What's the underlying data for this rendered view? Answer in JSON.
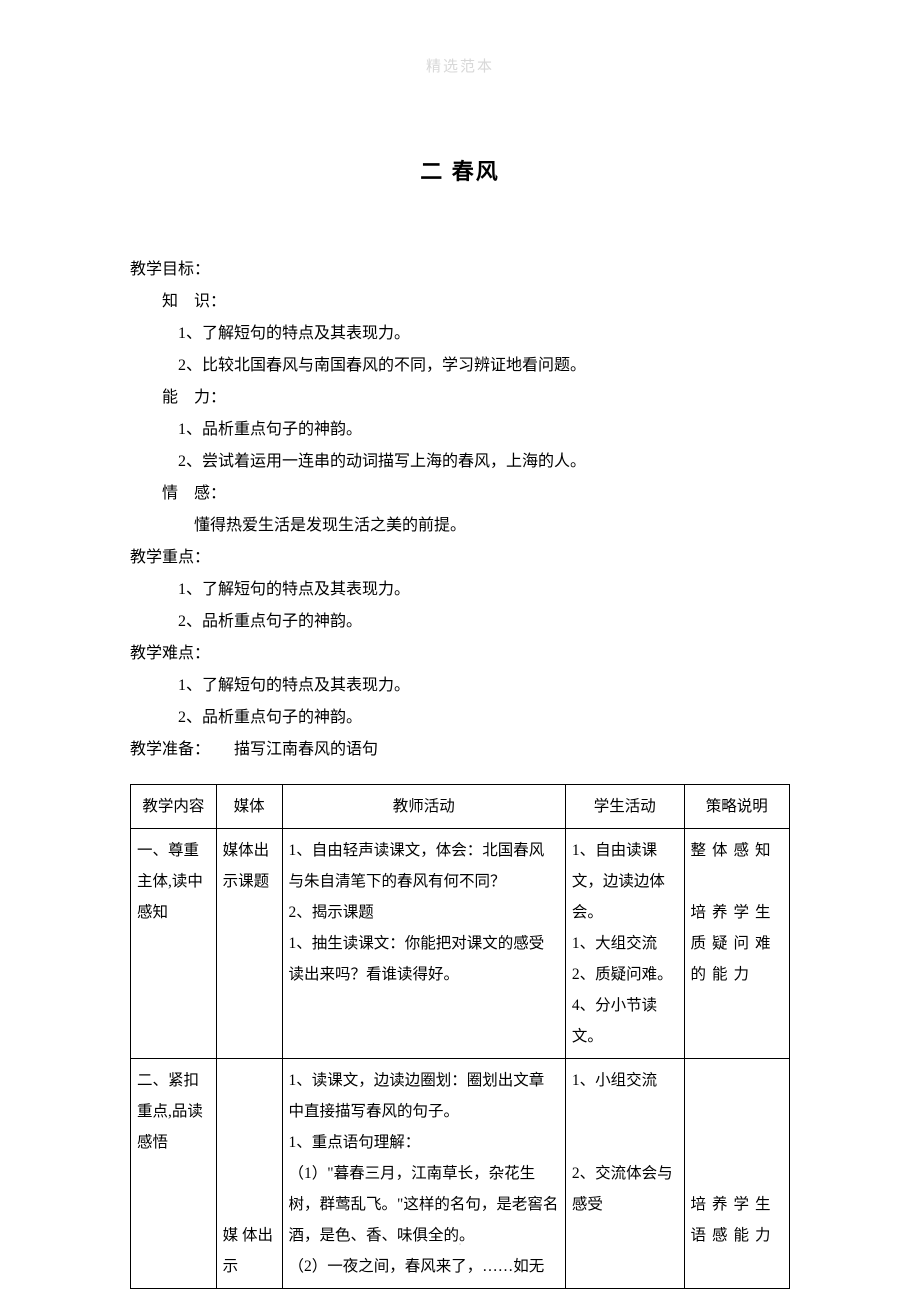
{
  "watermark": "精选范本",
  "title": "二 春风",
  "footer": ".",
  "sections": {
    "goals_label": "教学目标：",
    "knowledge_label": "知　识：",
    "knowledge_items": [
      "1、了解短句的特点及其表现力。",
      "2、比较北国春风与南国春风的不同，学习辨证地看问题。"
    ],
    "ability_label": "能　力：",
    "ability_items": [
      "1、品析重点句子的神韵。",
      "2、尝试着运用一连串的动词描写上海的春风，上海的人。"
    ],
    "emotion_label": "情　感：",
    "emotion_items": [
      "懂得热爱生活是发现生活之美的前提。"
    ],
    "keypoints_label": "教学重点：",
    "keypoints_items": [
      "1、了解短句的特点及其表现力。",
      "2、品析重点句子的神韵。"
    ],
    "difficulty_label": "教学难点：",
    "difficulty_items": [
      "1、了解短句的特点及其表现力。",
      "2、品析重点句子的神韵。"
    ],
    "prep_label": "教学准备：",
    "prep_text": "描写江南春风的语句"
  },
  "table": {
    "headers": [
      "教学内容",
      "媒体",
      "教师活动",
      "学生活动",
      "策略说明"
    ],
    "rows": [
      {
        "c1": "一、尊重主体,读中感知",
        "c2": "媒体出示课题",
        "c3": "1、自由轻声读课文，体会：北国春风与朱自清笔下的春风有何不同？\n2、揭示课题\n1、抽生读课文：你能把对课文的感受读出来吗？看谁读得好。",
        "c4": "1、自由读课文，边读边体会。\n1、大组交流\n2、质疑问难。\n4、分小节读文。",
        "c5": "整体感知\n\n培养学生质疑问难的能力"
      },
      {
        "c1": "二、紧扣重点,品读感悟",
        "c2": "\n\n\n\n\n媒 体出示",
        "c3": "1、读课文，边读边圈划：圈划出文章中直接描写春风的句子。\n1、重点语句理解：\n（1）\"暮春三月，江南草长，杂花生树，群莺乱飞。\"这样的名句，是老窖名酒，是色、香、味俱全的。\n（2）一夜之间，春风来了，……如无",
        "c4": "1、小组交流\n\n\n2、交流体会与感受",
        "c5": "\n\n\n\n培养学生语感能力"
      }
    ]
  }
}
